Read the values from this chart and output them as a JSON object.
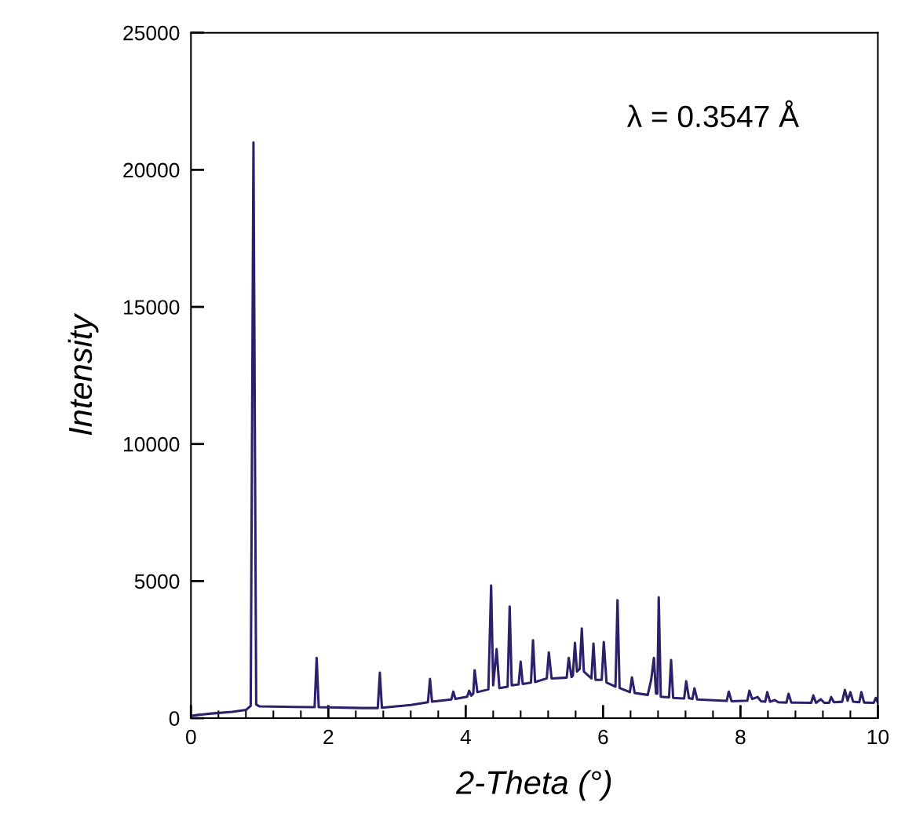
{
  "chart_data": {
    "type": "line",
    "xlabel": "2-Theta (°)",
    "ylabel": "Intensity",
    "annotations": [
      "λ = 0.3547 Å"
    ],
    "xlim": [
      0,
      10
    ],
    "ylim": [
      0,
      25000
    ],
    "xticks": [
      0,
      {
        "value": 0.4,
        "label": null
      },
      {
        "value": 0.8,
        "label": null
      },
      {
        "value": 1.2,
        "label": null
      },
      {
        "value": 1.6,
        "label": null
      },
      2,
      {
        "value": 2.4,
        "label": null
      },
      {
        "value": 2.8,
        "label": null
      },
      {
        "value": 3.2,
        "label": null
      },
      {
        "value": 3.6,
        "label": null
      },
      4,
      {
        "value": 4.4,
        "label": null
      },
      {
        "value": 4.8,
        "label": null
      },
      {
        "value": 5.2,
        "label": null
      },
      {
        "value": 5.6,
        "label": null
      },
      6,
      {
        "value": 6.4,
        "label": null
      },
      {
        "value": 6.8,
        "label": null
      },
      {
        "value": 7.2,
        "label": null
      },
      {
        "value": 7.6,
        "label": null
      },
      8,
      {
        "value": 8.4,
        "label": null
      },
      {
        "value": 8.8,
        "label": null
      },
      {
        "value": 9.2,
        "label": null
      },
      {
        "value": 9.6,
        "label": null
      },
      10
    ],
    "yticks": [
      0,
      5000,
      10000,
      15000,
      20000,
      25000
    ],
    "grid": false,
    "marker": "none",
    "line_style": "solid",
    "series": [
      {
        "color": "#2e1f6b",
        "x": [
          0,
          0.1,
          0.3,
          0.6,
          0.8,
          0.87,
          0.91,
          0.95,
          1.0,
          1.5,
          1.8,
          1.83,
          1.86,
          2.5,
          2.72,
          2.75,
          2.78,
          3.2,
          3.45,
          3.48,
          3.51,
          3.79,
          3.82,
          3.85,
          4.02,
          4.05,
          4.08,
          4.11,
          4.13,
          4.17,
          4.33,
          4.37,
          4.4,
          4.45,
          4.49,
          4.61,
          4.64,
          4.67,
          4.77,
          4.8,
          4.83,
          4.95,
          4.98,
          5.01,
          5.18,
          5.21,
          5.25,
          5.47,
          5.5,
          5.54,
          5.56,
          5.59,
          5.62,
          5.66,
          5.69,
          5.72,
          5.83,
          5.86,
          5.89,
          5.98,
          6.01,
          6.05,
          6.18,
          6.21,
          6.24,
          6.39,
          6.42,
          6.46,
          6.65,
          6.7,
          6.74,
          6.77,
          6.79,
          6.81,
          6.84,
          6.96,
          6.99,
          7.02,
          7.18,
          7.21,
          7.25,
          7.3,
          7.33,
          7.37,
          7.8,
          7.83,
          7.87,
          8.1,
          8.13,
          8.17,
          8.25,
          8.3,
          8.36,
          8.39,
          8.43,
          8.5,
          8.55,
          8.67,
          8.7,
          8.74,
          9.03,
          9.06,
          9.1,
          9.17,
          9.22,
          9.29,
          9.32,
          9.36,
          9.48,
          9.52,
          9.56,
          9.6,
          9.64,
          9.73,
          9.76,
          9.8,
          9.94,
          9.97,
          10.0
        ],
        "values": [
          80,
          120,
          170,
          230,
          300,
          450,
          21000,
          500,
          430,
          410,
          400,
          2200,
          400,
          370,
          370,
          1660,
          380,
          480,
          580,
          1430,
          600,
          680,
          970,
          700,
          780,
          1000,
          820,
          900,
          1750,
          950,
          1050,
          4840,
          1200,
          2520,
          1100,
          1150,
          4070,
          1200,
          1230,
          2060,
          1250,
          1300,
          2840,
          1320,
          1450,
          2400,
          1450,
          1480,
          2200,
          1500,
          1550,
          2750,
          1700,
          1800,
          3270,
          1700,
          1450,
          2720,
          1400,
          1400,
          2780,
          1300,
          1150,
          4300,
          1100,
          950,
          1490,
          920,
          850,
          1400,
          2200,
          900,
          900,
          4410,
          780,
          760,
          2120,
          740,
          720,
          1350,
          730,
          700,
          1090,
          680,
          630,
          970,
          620,
          640,
          1000,
          700,
          770,
          620,
          600,
          950,
          600,
          660,
          580,
          570,
          890,
          570,
          560,
          830,
          560,
          690,
          560,
          560,
          770,
          580,
          600,
          1030,
          640,
          950,
          600,
          580,
          950,
          570,
          560,
          740,
          570
        ]
      }
    ]
  }
}
